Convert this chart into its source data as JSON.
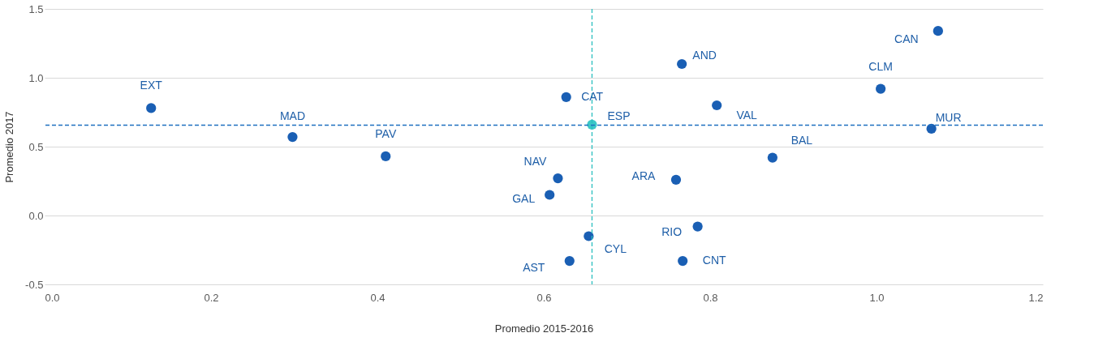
{
  "chart_data": {
    "type": "scatter",
    "xlabel": "Promedio 2015-2016",
    "ylabel": "Promedio 2017",
    "x": [
      0.128,
      0.298,
      0.41,
      0.627,
      0.658,
      0.617,
      0.607,
      0.654,
      0.631,
      0.766,
      0.808,
      0.759,
      0.785,
      0.767,
      0.875,
      1.005,
      1.074,
      1.066
    ],
    "values": [
      0.78,
      0.57,
      0.43,
      0.86,
      0.66,
      0.27,
      0.15,
      -0.15,
      -0.33,
      1.1,
      0.8,
      0.26,
      -0.08,
      -0.33,
      0.42,
      0.92,
      1.34,
      0.63
    ],
    "value_labels": [
      "EXT",
      "MAD",
      "PAV",
      "CAT",
      "ESP",
      "NAV",
      "GAL",
      "CYL",
      "AST",
      "AND",
      "VAL",
      "ARA",
      "RIO",
      "CNT",
      "BAL",
      "CLM",
      "CAN",
      "MUR"
    ],
    "colors": [
      "#1a5fb4",
      "#1a5fb4",
      "#1a5fb4",
      "#1a5fb4",
      "#3cc8c8",
      "#1a5fb4",
      "#1a5fb4",
      "#1a5fb4",
      "#1a5fb4",
      "#1a5fb4",
      "#1a5fb4",
      "#1a5fb4",
      "#1a5fb4",
      "#1a5fb4",
      "#1a5fb4",
      "#1a5fb4",
      "#1a5fb4",
      "#1a5fb4"
    ],
    "marker": "circle",
    "xlim": [
      0,
      1.2
    ],
    "xticks": [
      {
        "value": 0,
        "label": "0.0"
      },
      0.2,
      0.4,
      0.6,
      0.8,
      {
        "value": 1,
        "label": "1.0"
      },
      1.2
    ],
    "ylim": [
      -0.5,
      1.5
    ],
    "yticks": [
      -0.5,
      {
        "value": 0,
        "label": "0.0"
      },
      0.5,
      {
        "value": 1,
        "label": "1.0"
      },
      1.5
    ],
    "grid": "y",
    "ref_lines": [
      {
        "axis": "x",
        "value": 0.658,
        "color": "#2bbfbf",
        "line_style": "dashed"
      },
      {
        "axis": "y",
        "value": 0.656,
        "color": "#1f6fc0",
        "line_style": "dashed"
      }
    ]
  }
}
